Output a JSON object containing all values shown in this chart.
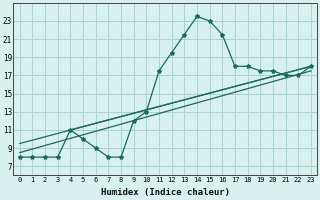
{
  "xlabel": "Humidex (Indice chaleur)",
  "bg_color": "#d8f0ee",
  "grid_color": "#a8d4cc",
  "line_color": "#1a6b5a",
  "x_ticks": [
    0,
    1,
    2,
    3,
    4,
    5,
    6,
    7,
    8,
    9,
    10,
    11,
    12,
    13,
    14,
    15,
    16,
    17,
    18,
    19,
    20,
    21,
    22,
    23
  ],
  "y_ticks": [
    7,
    9,
    11,
    13,
    15,
    17,
    19,
    21,
    23
  ],
  "ylim": [
    6.0,
    25.0
  ],
  "xlim": [
    -0.5,
    23.5
  ],
  "curve1_x": [
    0,
    1,
    2,
    3,
    4,
    5,
    6,
    7,
    8,
    9,
    10,
    11,
    12,
    13,
    14,
    15,
    16,
    17,
    18,
    19,
    20,
    21,
    22,
    23
  ],
  "curve1_y": [
    8,
    8,
    8,
    8,
    11,
    10,
    9,
    8,
    8,
    12,
    13,
    17.5,
    19.5,
    21.5,
    23.5,
    23,
    21.5,
    18,
    18,
    17.5,
    17.5,
    17,
    17,
    18
  ],
  "line2_x": [
    0,
    23
  ],
  "line2_y": [
    8.5,
    17.5
  ],
  "line3_x": [
    0,
    23
  ],
  "line3_y": [
    9.5,
    18.0
  ],
  "line4_x": [
    4,
    23
  ],
  "line4_y": [
    11,
    18.0
  ]
}
